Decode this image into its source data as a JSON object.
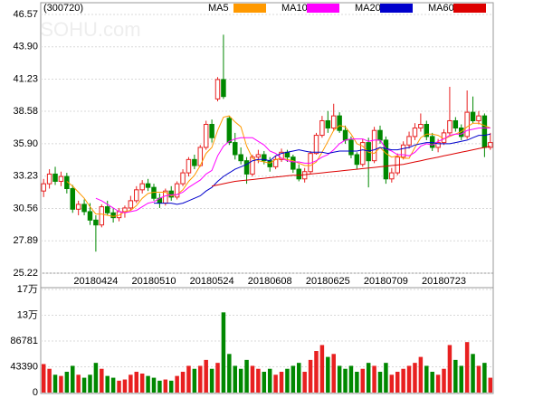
{
  "chart_data": {
    "type": "candlestick",
    "title": "(300720)",
    "watermark": "SOHU.com",
    "categories": [
      null,
      null,
      null,
      null,
      null,
      null,
      null,
      null,
      null,
      "20180424",
      null,
      null,
      null,
      null,
      null,
      null,
      null,
      null,
      null,
      "20180510",
      null,
      null,
      null,
      null,
      null,
      null,
      null,
      null,
      null,
      "20180524",
      null,
      null,
      null,
      null,
      null,
      null,
      null,
      null,
      null,
      "20180608",
      null,
      null,
      null,
      null,
      null,
      null,
      null,
      null,
      null,
      "20180625",
      null,
      null,
      null,
      null,
      null,
      null,
      null,
      null,
      null,
      "20180709",
      null,
      null,
      null,
      null,
      null,
      null,
      null,
      null,
      null,
      "20180723",
      null,
      null,
      null,
      null,
      null,
      null,
      null,
      null
    ],
    "open": [
      32.0,
      32.6,
      33.4,
      32.8,
      33.2,
      32.2,
      30.5,
      30.9,
      30.3,
      29.6,
      29.2,
      30.7,
      30.2,
      29.8,
      30.3,
      30.6,
      31.2,
      32.1,
      32.6,
      32.3,
      31.4,
      31.0,
      32.0,
      31.5,
      32.6,
      33.5,
      34.6,
      34.1,
      35.6,
      37.5,
      39.6,
      41.2,
      38.0,
      36.0,
      35.0,
      34.5,
      33.4,
      34.8,
      35.0,
      34.5,
      34.0,
      34.6,
      35.2,
      34.8,
      33.8,
      33.0,
      33.6,
      35.1,
      36.6,
      37.8,
      37.2,
      38.2,
      37.0,
      36.2,
      35.0,
      34.2,
      36.0,
      34.5,
      37.0,
      36.2,
      33.0,
      33.5,
      34.8,
      35.8,
      36.5,
      37.2,
      37.5,
      36.5,
      35.6,
      36.0,
      36.8,
      37.8,
      37.2,
      36.5,
      38.5,
      37.8,
      38.2,
      35.6
    ],
    "high": [
      33.0,
      33.8,
      34.0,
      33.6,
      33.5,
      32.5,
      31.2,
      31.3,
      31.0,
      30.0,
      30.9,
      31.2,
      30.6,
      30.6,
      30.8,
      31.6,
      32.4,
      32.9,
      33.0,
      32.6,
      31.8,
      32.2,
      32.4,
      32.8,
      33.8,
      34.8,
      35.0,
      35.8,
      37.8,
      37.9,
      41.4,
      44.9,
      38.2,
      36.8,
      35.6,
      34.8,
      35.0,
      35.4,
      35.3,
      34.8,
      34.9,
      35.5,
      35.4,
      35.0,
      34.2,
      33.9,
      35.3,
      36.8,
      38.2,
      38.6,
      39.2,
      38.5,
      37.4,
      36.5,
      35.2,
      36.3,
      36.4,
      37.3,
      37.4,
      36.5,
      33.9,
      35.1,
      36.1,
      36.9,
      37.6,
      38.4,
      37.8,
      36.8,
      36.3,
      37.1,
      40.6,
      38.1,
      37.5,
      40.3,
      39.8,
      38.6,
      38.4,
      36.8
    ],
    "low": [
      31.5,
      32.2,
      32.5,
      32.4,
      31.8,
      30.2,
      30.0,
      30.0,
      29.2,
      27.0,
      29.0,
      30.0,
      29.4,
      29.5,
      29.8,
      30.4,
      31.0,
      31.8,
      32.0,
      31.2,
      30.6,
      30.8,
      31.2,
      31.3,
      32.4,
      33.2,
      33.8,
      34.0,
      35.4,
      36.0,
      39.4,
      39.6,
      35.8,
      34.6,
      34.2,
      32.6,
      33.2,
      34.3,
      34.2,
      33.6,
      33.8,
      34.4,
      34.4,
      33.5,
      32.8,
      32.7,
      33.4,
      35.0,
      36.4,
      36.8,
      37.0,
      36.8,
      35.9,
      34.7,
      33.8,
      34.0,
      32.3,
      34.3,
      35.9,
      32.6,
      32.7,
      33.3,
      34.6,
      35.5,
      36.2,
      36.9,
      36.2,
      35.3,
      35.2,
      35.8,
      36.6,
      36.9,
      36.2,
      36.3,
      37.6,
      37.5,
      34.8,
      35.4
    ],
    "close": [
      32.6,
      33.4,
      32.8,
      33.2,
      32.2,
      30.5,
      30.9,
      30.3,
      29.6,
      29.2,
      30.7,
      30.2,
      29.8,
      30.3,
      30.6,
      31.2,
      32.1,
      32.6,
      32.3,
      31.4,
      31.0,
      32.0,
      31.5,
      32.6,
      33.5,
      34.6,
      34.1,
      35.6,
      37.5,
      36.4,
      41.2,
      39.8,
      36.0,
      35.0,
      34.5,
      33.4,
      34.8,
      35.0,
      34.5,
      34.0,
      34.6,
      35.2,
      34.8,
      33.8,
      33.0,
      33.6,
      35.1,
      36.6,
      37.8,
      37.2,
      38.2,
      37.0,
      36.2,
      35.0,
      34.2,
      36.0,
      34.5,
      37.0,
      36.2,
      33.0,
      33.5,
      34.8,
      35.8,
      36.5,
      37.2,
      37.5,
      36.5,
      35.6,
      36.0,
      36.8,
      37.8,
      37.2,
      36.5,
      38.5,
      37.8,
      38.2,
      35.6,
      36.0
    ],
    "volume": [
      48000,
      40000,
      30000,
      28000,
      35000,
      45000,
      30000,
      25000,
      30000,
      50000,
      40000,
      28000,
      25000,
      20000,
      22000,
      30000,
      35000,
      32000,
      28000,
      25000,
      20000,
      22000,
      20000,
      28000,
      35000,
      45000,
      40000,
      45000,
      55000,
      40000,
      50000,
      135000,
      65000,
      45000,
      40000,
      55000,
      45000,
      40000,
      35000,
      40000,
      30000,
      35000,
      40000,
      45000,
      50000,
      35000,
      55000,
      70000,
      80000,
      60000,
      65000,
      45000,
      40000,
      45000,
      35000,
      40000,
      50000,
      45000,
      35000,
      50000,
      30000,
      35000,
      40000,
      45000,
      50000,
      60000,
      45000,
      35000,
      30000,
      40000,
      80000,
      55000,
      45000,
      85000,
      65000,
      45000,
      50000,
      25000
    ],
    "up_color": "#e82020",
    "down_color": "#008800",
    "series": [
      {
        "name": "MA5",
        "color": "#ff9900",
        "values": [
          null,
          null,
          null,
          null,
          32.8,
          32.4,
          31.9,
          31.4,
          30.7,
          30.1,
          30.1,
          30.0,
          29.9,
          30.0,
          30.3,
          30.4,
          30.8,
          31.4,
          31.8,
          31.9,
          31.9,
          31.9,
          31.6,
          31.7,
          32.1,
          32.8,
          33.3,
          34.1,
          35.1,
          35.6,
          37.0,
          38.1,
          38.2,
          37.7,
          37.3,
          35.7,
          34.7,
          34.5,
          34.4,
          34.3,
          34.6,
          34.7,
          34.6,
          34.5,
          34.3,
          34.1,
          34.1,
          34.4,
          35.2,
          36.1,
          37.0,
          37.4,
          37.3,
          36.7,
          35.9,
          35.7,
          35.2,
          35.1,
          35.6,
          35.1,
          34.8,
          34.9,
          34.7,
          34.7,
          35.6,
          36.4,
          36.7,
          36.7,
          36.6,
          36.3,
          36.5,
          36.7,
          36.9,
          37.3,
          37.6,
          37.6,
          37.4,
          37.2
        ]
      },
      {
        "name": "MA10",
        "color": "#ff00ff",
        "values": [
          null,
          null,
          null,
          null,
          null,
          null,
          null,
          null,
          null,
          31.4,
          31.2,
          30.9,
          30.6,
          30.3,
          30.2,
          30.3,
          30.4,
          30.7,
          31.0,
          31.1,
          31.4,
          31.6,
          31.7,
          31.7,
          31.9,
          32.3,
          32.6,
          32.9,
          33.4,
          33.7,
          34.9,
          35.7,
          36.1,
          36.3,
          36.4,
          36.4,
          36.4,
          36.1,
          35.8,
          35.3,
          35.1,
          34.7,
          34.5,
          34.4,
          34.4,
          34.3,
          34.3,
          34.5,
          34.8,
          35.0,
          35.4,
          35.9,
          36.2,
          36.3,
          36.3,
          36.3,
          36.1,
          36.2,
          36.2,
          35.5,
          35.3,
          35.0,
          35.0,
          34.9,
          35.2,
          35.7,
          35.9,
          35.8,
          36.1,
          36.3,
          36.6,
          36.7,
          36.7,
          37.0,
          37.1,
          37.2,
          37.2,
          37.2
        ]
      },
      {
        "name": "MA20",
        "color": "#0000cc",
        "values": [
          null,
          null,
          null,
          null,
          null,
          null,
          null,
          null,
          null,
          null,
          null,
          null,
          null,
          null,
          null,
          null,
          null,
          null,
          null,
          31.0,
          31.0,
          31.0,
          31.0,
          30.9,
          31.0,
          31.2,
          31.4,
          31.6,
          32.0,
          32.3,
          32.8,
          33.2,
          33.5,
          33.8,
          34.0,
          34.2,
          34.5,
          34.6,
          34.6,
          34.5,
          34.9,
          35.1,
          35.2,
          35.3,
          35.4,
          35.3,
          35.2,
          35.2,
          35.2,
          35.1,
          35.2,
          35.3,
          35.3,
          35.3,
          35.3,
          35.4,
          35.3,
          35.4,
          35.6,
          35.5,
          35.4,
          35.4,
          35.5,
          35.6,
          35.8,
          35.9,
          36.0,
          36.0,
          35.9,
          35.9,
          35.9,
          36.0,
          36.1,
          36.2,
          36.4,
          36.6,
          36.6,
          36.7
        ]
      },
      {
        "name": "MA60",
        "color": "#dd0000",
        "values": [
          null,
          null,
          null,
          null,
          null,
          null,
          null,
          null,
          null,
          null,
          null,
          null,
          null,
          null,
          null,
          null,
          null,
          null,
          null,
          null,
          null,
          null,
          null,
          null,
          null,
          null,
          null,
          null,
          null,
          32.4,
          32.5,
          32.6,
          32.7,
          32.8,
          32.85,
          32.9,
          32.95,
          33.0,
          33.05,
          33.1,
          33.15,
          33.2,
          33.25,
          33.3,
          33.3,
          33.35,
          33.4,
          33.45,
          33.5,
          33.55,
          33.6,
          33.65,
          33.7,
          33.75,
          33.8,
          33.85,
          33.9,
          33.95,
          34.0,
          34.05,
          34.1,
          34.15,
          34.2,
          34.3,
          34.4,
          34.5,
          34.6,
          34.7,
          34.8,
          34.9,
          35.0,
          35.1,
          35.2,
          35.3,
          35.4,
          35.5,
          35.6,
          35.7
        ]
      }
    ],
    "ylim": [
      25.22,
      46.57
    ],
    "yticks": [
      46.57,
      {
        "value": 43.9,
        "label": "43.90"
      },
      41.23,
      38.58,
      {
        "value": 35.9,
        "label": "35.90"
      },
      33.23,
      30.56,
      27.89,
      25.22
    ],
    "volume_ylim": [
      0,
      173562
    ],
    "volume_ticks": [
      {
        "value": 173562,
        "label": "17万"
      },
      {
        "value": 130171,
        "label": "13万"
      },
      86781,
      43390,
      0
    ],
    "grid": true
  }
}
